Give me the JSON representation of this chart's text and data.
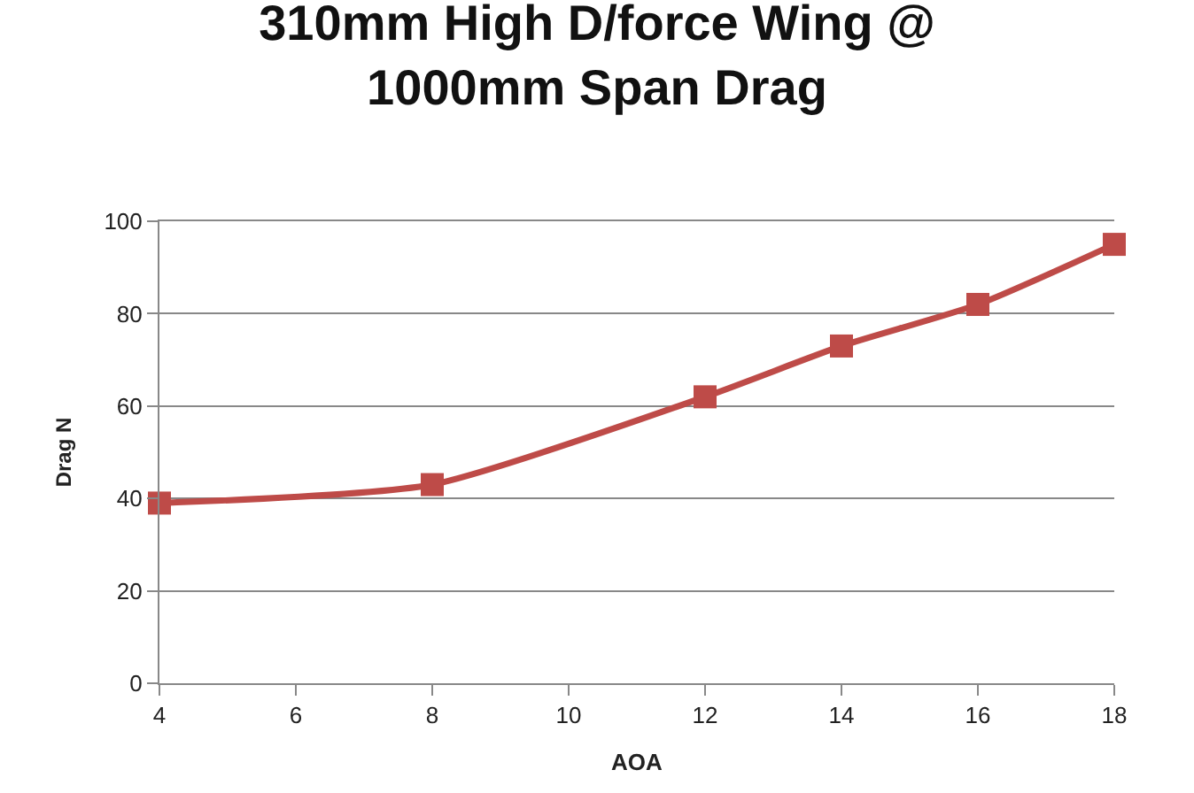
{
  "chart_data": {
    "type": "line",
    "title": "310mm High D/force Wing @\n1000mm Span Drag",
    "xlabel": "AOA",
    "ylabel": "Drag N",
    "x": [
      4,
      8,
      12,
      14,
      16,
      18
    ],
    "series": [
      {
        "color": "#be4b48",
        "values": [
          39,
          43,
          62,
          73,
          82,
          95
        ]
      }
    ],
    "xlim": [
      4,
      18
    ],
    "xticks": [
      4,
      6,
      8,
      10,
      12,
      14,
      16,
      18
    ],
    "ylim": [
      0,
      100
    ],
    "yticks": [
      0,
      20,
      40,
      60,
      80,
      100
    ],
    "grid": "y",
    "marker": "square",
    "line_style": "solid"
  }
}
